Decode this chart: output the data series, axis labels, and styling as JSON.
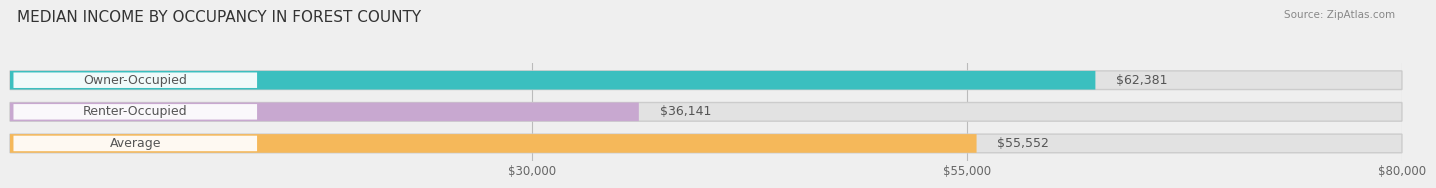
{
  "title": "MEDIAN INCOME BY OCCUPANCY IN FOREST COUNTY",
  "source": "Source: ZipAtlas.com",
  "categories": [
    "Owner-Occupied",
    "Renter-Occupied",
    "Average"
  ],
  "values": [
    62381,
    36141,
    55552
  ],
  "bar_colors": [
    "#3bbfbf",
    "#c8a8d0",
    "#f5b85a"
  ],
  "value_labels": [
    "$62,381",
    "$36,141",
    "$55,552"
  ],
  "xlim": [
    0,
    80000
  ],
  "xticks": [
    0,
    30000,
    55000,
    80000
  ],
  "xtick_labels": [
    "",
    "$30,000",
    "$55,000",
    "$80,000"
  ],
  "background_color": "#efefef",
  "bar_bg_color": "#e2e2e2",
  "title_fontsize": 11,
  "bar_height": 0.55,
  "bar_label_fontsize": 9,
  "source_fontsize": 7.5
}
